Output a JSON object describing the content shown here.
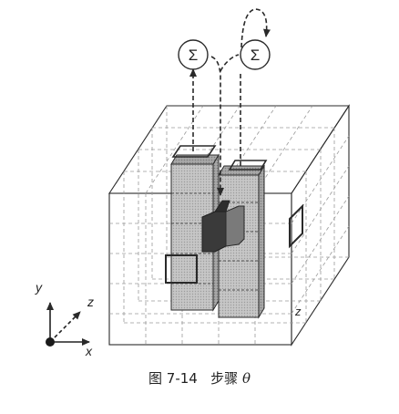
{
  "diagram": {
    "sum_nodes": [
      {
        "symbol": "Σ"
      },
      {
        "symbol": "Σ"
      }
    ],
    "axes": {
      "x": "x",
      "y": "y",
      "z": "z"
    },
    "grid_label": "z",
    "colors": {
      "line": "#2a2a2a",
      "grid": "#9a9a9a",
      "column_fill": "#c8c8c8",
      "column_fill_dark": "#a9a9a9",
      "block_dark": "#3a3a3a",
      "block_mid": "#7a7a7a"
    }
  },
  "caption": {
    "figure_number": "图 7-14",
    "title": "步骤",
    "symbol": "θ"
  }
}
